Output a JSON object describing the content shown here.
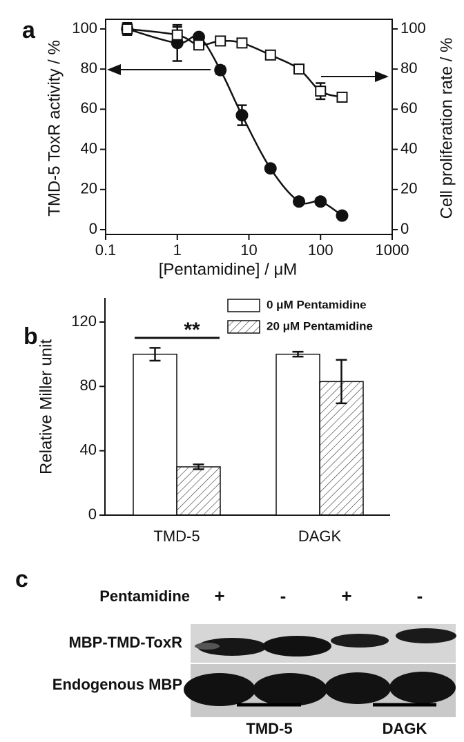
{
  "chart_data": [
    {
      "type": "scatter",
      "panel": "a",
      "x_label": "[Pentamidine] / μM",
      "y_label": "TMD-5 ToxR activity / %",
      "y2_label": "Cell proliferation rate / %",
      "xscale": "log",
      "xlim": [
        0.1,
        1000
      ],
      "xticks": [
        0.1,
        1,
        10,
        100,
        1000
      ],
      "ylim": [
        -2.4,
        104.8
      ],
      "yticks": [
        0,
        20,
        40,
        60,
        80,
        100
      ],
      "y2lim": [
        -2.4,
        104.8
      ],
      "y2ticks": [
        0,
        20,
        40,
        60,
        80,
        100
      ],
      "x": [
        0.2,
        1,
        2,
        4,
        8,
        20,
        50,
        100,
        200
      ],
      "series": [
        {
          "marker": "circle",
          "color": "#111111",
          "values": [
            100,
            93,
            96,
            79.5,
            57,
            30.5,
            14,
            14,
            7
          ],
          "errors": [
            3,
            9,
            1.5,
            2,
            5,
            1.5,
            1.5,
            1.5,
            1.5
          ]
        },
        {
          "marker": "square",
          "axis": "y2",
          "color": "#111111",
          "values": [
            100,
            97,
            92,
            94,
            93,
            87,
            80,
            69,
            66
          ],
          "errors": [
            2,
            4,
            2,
            1.5,
            2,
            2,
            2,
            4,
            2
          ]
        }
      ]
    },
    {
      "type": "bar",
      "panel": "b",
      "y_label": "Relative Miller unit",
      "categories": [
        "TMD-5",
        "DAGK"
      ],
      "ylim": [
        0,
        135
      ],
      "yticks": [
        0,
        40,
        80,
        120
      ],
      "legend": "top right",
      "annotation": "**",
      "series": [
        {
          "name": "0 μM Pentamidine",
          "color": "#ffffff",
          "hatch": false,
          "values": [
            100,
            100
          ],
          "errors": [
            4,
            1.5
          ]
        },
        {
          "name": "20 μM Pentamidine",
          "color": "#ffffff",
          "hatch": true,
          "values": [
            30,
            83
          ],
          "errors": [
            1.5,
            13.5
          ]
        }
      ]
    }
  ],
  "blot": {
    "panel": "c",
    "treatment": "Pentamidine",
    "lanes": [
      "+",
      "-",
      "+",
      "-"
    ],
    "rows": [
      "MBP-TMD-ToxR",
      "Endogenous MBP"
    ],
    "groups": [
      "TMD-5",
      "DAGK"
    ]
  }
}
